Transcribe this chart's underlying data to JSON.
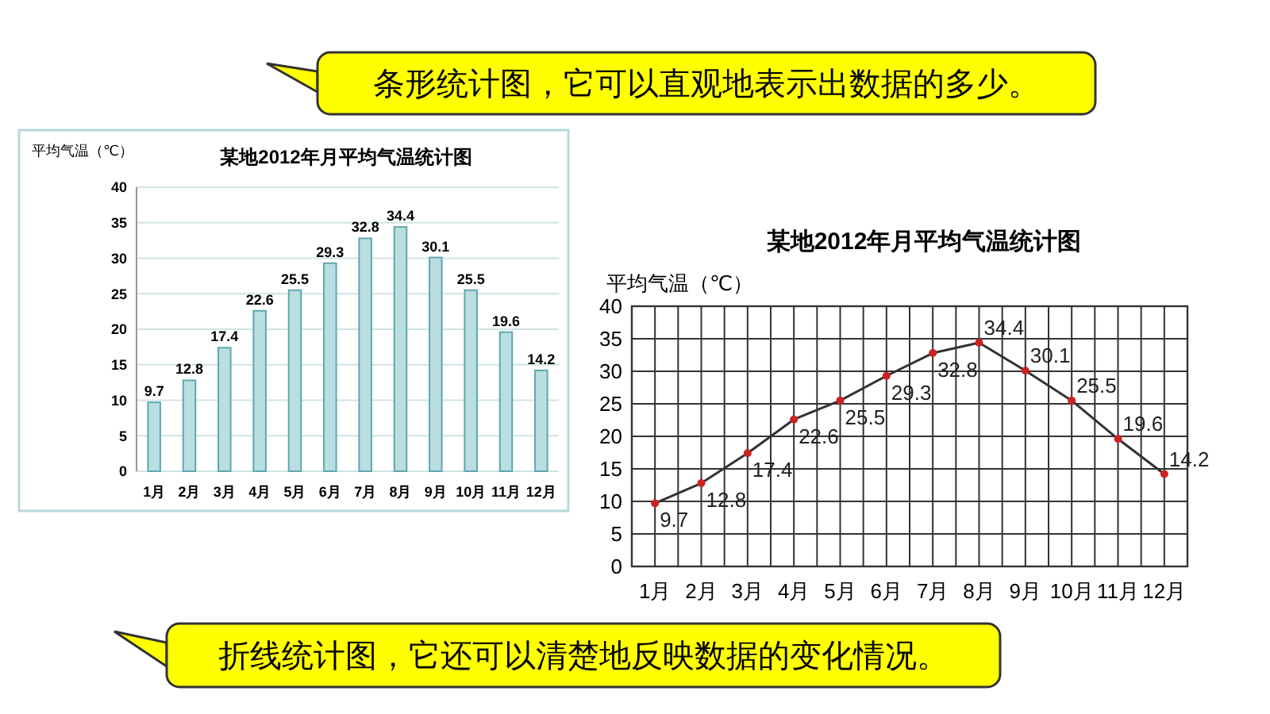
{
  "chart_data": [
    {
      "type": "bar",
      "title": "某地2012年月平均气温统计图",
      "ylabel": "平均气温（℃）",
      "categories": [
        "1月",
        "2月",
        "3月",
        "4月",
        "5月",
        "6月",
        "7月",
        "8月",
        "9月",
        "10月",
        "11月",
        "12月"
      ],
      "values": [
        9.7,
        12.8,
        17.4,
        22.6,
        25.5,
        29.3,
        32.8,
        34.4,
        30.1,
        25.5,
        19.6,
        14.2
      ],
      "color": "#b9dfe2",
      "ylim": [
        0,
        40
      ],
      "yticks": [
        0,
        5,
        10,
        15,
        20,
        25,
        30,
        35,
        40
      ],
      "grid": "y",
      "data_labels": true,
      "annotations": [
        "条形统计图，它可以直观地表示出数据的多少。"
      ]
    },
    {
      "type": "line",
      "title": "某地2012年月平均气温统计图",
      "ylabel": "平均气温（℃）",
      "categories": [
        "1月",
        "2月",
        "3月",
        "4月",
        "5月",
        "6月",
        "7月",
        "8月",
        "9月",
        "10月",
        "11月",
        "12月"
      ],
      "values": [
        9.7,
        12.8,
        17.4,
        22.6,
        25.5,
        29.3,
        32.8,
        34.4,
        30.1,
        25.5,
        19.6,
        14.2
      ],
      "color": "#333333",
      "marker": "circle",
      "ylim": [
        0,
        40
      ],
      "yticks": [
        0,
        5,
        10,
        15,
        20,
        25,
        30,
        35,
        40
      ],
      "grid": true,
      "data_labels": true,
      "annotations": [
        "折线统计图，它还可以清楚地反映数据的变化情况。"
      ]
    }
  ]
}
